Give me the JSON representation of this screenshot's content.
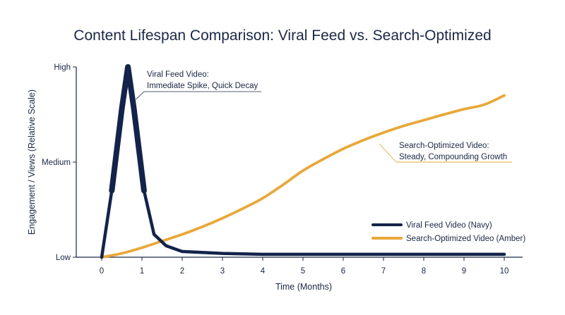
{
  "chart_data": {
    "type": "line",
    "title": "Content Lifespan Comparison: Viral Feed vs. Search-Optimized",
    "xlabel": "Time (Months)",
    "ylabel": "Engagement / Views (Relative Scale)",
    "xlim": [
      0,
      10
    ],
    "ylim": [
      0,
      100
    ],
    "x_ticks": [
      "0",
      "1",
      "2",
      "3",
      "4",
      "5",
      "6",
      "7",
      "8",
      "9",
      "10"
    ],
    "y_ticks": [
      {
        "value": 0,
        "label": "Low"
      },
      {
        "value": 50,
        "label": "Medium"
      },
      {
        "value": 100,
        "label": "High"
      }
    ],
    "grid": false,
    "legend_position": "lower-right",
    "series": [
      {
        "name": "Viral Feed Video (Navy)",
        "color": "#13234a",
        "x": [
          0,
          0.25,
          0.5,
          0.65,
          0.8,
          1.05,
          1.3,
          1.6,
          2,
          3,
          4,
          5,
          6,
          7,
          8,
          9,
          10
        ],
        "y": [
          0,
          35,
          78,
          100,
          78,
          35,
          12,
          6,
          3,
          2,
          1.5,
          1.5,
          1.5,
          1.5,
          1.5,
          1.5,
          1.5
        ]
      },
      {
        "name": "Search-Optimized Video (Amber)",
        "color": "#e8a83a",
        "x": [
          0,
          0.5,
          1,
          1.5,
          2,
          2.5,
          3,
          3.5,
          4,
          4.5,
          5,
          5.5,
          6,
          6.5,
          7,
          7.5,
          8,
          8.5,
          9,
          9.5,
          10
        ],
        "y": [
          0,
          2,
          5,
          8.5,
          12,
          16,
          20.5,
          25.5,
          31,
          38,
          45.5,
          51.5,
          57,
          61.5,
          65.5,
          69,
          72,
          75,
          77.8,
          80.2,
          85
        ]
      }
    ],
    "annotations": [
      {
        "line1": "Viral Feed Video:",
        "line2": "Immediate Spike, Quick Decay",
        "x": 0.85,
        "y": 83
      },
      {
        "line1": "Search-Optimized Video:",
        "line2": "Steady, Compounding Growth",
        "x": 6.9,
        "y": 61
      }
    ]
  }
}
